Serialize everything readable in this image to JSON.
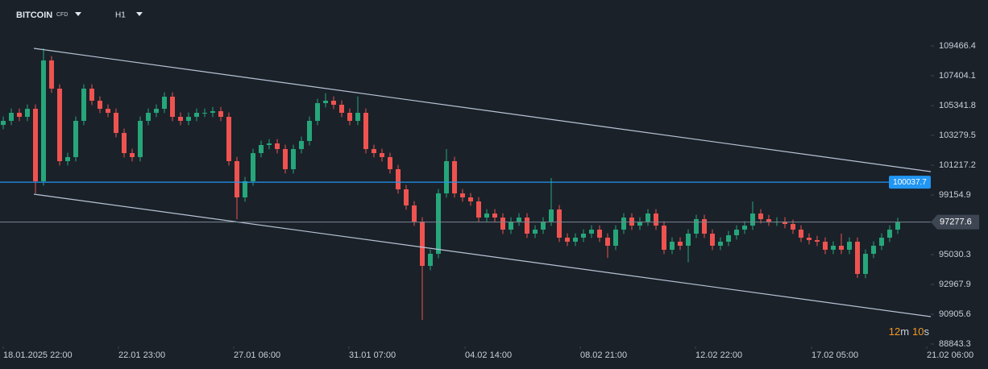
{
  "chart_data": {
    "type": "candlestick",
    "symbol": "BITCOIN",
    "instrument_type": "CFD",
    "timeframe": "H1",
    "up_color": "#26a67a",
    "down_color": "#ef5350",
    "open": [
      104000,
      104282,
      104839,
      104561,
      105118,
      100102,
      108463,
      106512,
      101495,
      101774,
      104282,
      106512,
      105676,
      105118,
      104839,
      103446,
      102052,
      101774,
      104282,
      104839,
      105118,
      105954,
      104561,
      104282,
      104561,
      104839,
      104839,
      104951,
      104561,
      101495,
      98987,
      100102,
      102052,
      102610,
      102721,
      102331,
      100938,
      102331,
      102889,
      104282,
      105508,
      105676,
      105397,
      104839,
      104282,
      104839,
      102331,
      102052,
      101774,
      100938,
      99544,
      98429,
      97314,
      94249,
      95085,
      99265,
      101495,
      99265,
      98987,
      98708,
      97593,
      97872,
      97593,
      96757,
      97314,
      97593,
      96479,
      96757,
      97314,
      98151,
      96200,
      95921,
      96200,
      96479,
      96757,
      96200,
      95643,
      96757,
      97593,
      97036,
      97314,
      97872,
      97036,
      95364,
      95921,
      95643,
      96479,
      97482,
      96479,
      95643,
      95921,
      96367,
      96757,
      97036,
      97872,
      97482,
      97314,
      97314,
      97147,
      96757,
      96200,
      96033,
      95921,
      95364,
      95643,
      95364,
      95921,
      93692,
      95085,
      95643,
      96200,
      96757
    ],
    "high": [
      104582,
      105139,
      105139,
      105418,
      105418,
      109299,
      108763,
      106812,
      102074,
      104582,
      106812,
      106812,
      105976,
      105418,
      105139,
      103746,
      102352,
      104582,
      105139,
      105418,
      106254,
      106254,
      104861,
      104861,
      105139,
      105139,
      105251,
      105251,
      104861,
      101795,
      100402,
      102352,
      102910,
      103021,
      103021,
      102631,
      102631,
      103189,
      104582,
      105808,
      106200,
      105976,
      105697,
      105139,
      105976,
      105139,
      102631,
      102352,
      102074,
      101238,
      99844,
      98729,
      97614,
      95385,
      99565,
      102331,
      101795,
      99565,
      99287,
      99008,
      98172,
      98172,
      97893,
      97614,
      97893,
      97893,
      97057,
      97614,
      100325,
      98451,
      96500,
      96500,
      96779,
      97057,
      97057,
      96500,
      97057,
      97893,
      97893,
      97614,
      98172,
      98172,
      97336,
      96221,
      96221,
      96779,
      97782,
      97782,
      96779,
      96221,
      96667,
      97057,
      97336,
      98700,
      98172,
      97782,
      97614,
      97614,
      97447,
      97057,
      96500,
      96333,
      96221,
      95943,
      96479,
      96221,
      96221,
      95385,
      95943,
      96500,
      97057,
      97577.6
    ],
    "low": [
      103700,
      103982,
      104261,
      104261,
      99265,
      99802,
      106212,
      101195,
      101195,
      101474,
      103982,
      105376,
      104818,
      104539,
      103146,
      101752,
      101474,
      101474,
      103982,
      104539,
      104818,
      104261,
      103982,
      103982,
      104261,
      104539,
      104539,
      104261,
      101195,
      97482,
      98687,
      99802,
      101752,
      102310,
      102031,
      100638,
      100638,
      102031,
      102589,
      103982,
      105208,
      105097,
      104539,
      103982,
      103982,
      102031,
      101752,
      101474,
      100638,
      99244,
      98129,
      97014,
      90514,
      93949,
      94785,
      98965,
      98965,
      98687,
      98408,
      97293,
      97293,
      97293,
      96457,
      96457,
      97014,
      96179,
      96179,
      96457,
      97014,
      95900,
      95621,
      95621,
      95900,
      96179,
      95900,
      94800,
      95343,
      96457,
      96736,
      96736,
      97014,
      96736,
      95064,
      95064,
      95343,
      94500,
      96179,
      96179,
      95343,
      95343,
      95621,
      96067,
      96457,
      96736,
      97182,
      97014,
      97014,
      96847,
      96457,
      95900,
      95733,
      95621,
      95064,
      95064,
      95064,
      95064,
      93413,
      93392,
      94785,
      95343,
      95900,
      96457
    ],
    "close": [
      104282,
      104839,
      104561,
      105118,
      100102,
      108463,
      106512,
      101495,
      101774,
      104282,
      106512,
      105676,
      105118,
      104839,
      103446,
      102052,
      101774,
      104282,
      104839,
      105118,
      105954,
      104561,
      104282,
      104561,
      104839,
      104839,
      104951,
      104561,
      101495,
      98987,
      100102,
      102052,
      102610,
      102721,
      102331,
      100938,
      102331,
      102889,
      104282,
      105508,
      105676,
      105397,
      104839,
      104282,
      104839,
      102331,
      102052,
      101774,
      100938,
      99544,
      98429,
      97314,
      94249,
      95085,
      99265,
      101495,
      99265,
      98987,
      98708,
      97593,
      97872,
      97593,
      96757,
      97314,
      97593,
      96479,
      96757,
      97314,
      98151,
      96200,
      95921,
      96200,
      96479,
      96757,
      96200,
      95643,
      96757,
      97593,
      97036,
      97314,
      97872,
      97036,
      95364,
      95921,
      95643,
      96479,
      97482,
      96479,
      95643,
      95921,
      96367,
      96757,
      97036,
      97872,
      97482,
      97314,
      97314,
      97147,
      96757,
      96200,
      96033,
      95921,
      95364,
      95643,
      95364,
      95921,
      93692,
      95085,
      95643,
      96200,
      96757,
      97277.6
    ],
    "xlim": [
      -0.4,
      115.1
    ],
    "xticks": [
      {
        "value": 0,
        "label": "18.01.2025 22:00"
      },
      {
        "value": 14.3,
        "label": "22.01 23:00"
      },
      {
        "value": 28.6,
        "label": "27.01 06:00"
      },
      {
        "value": 42.9,
        "label": "31.01 07:00"
      },
      {
        "value": 57.3,
        "label": "04.02 14:00"
      },
      {
        "value": 71.6,
        "label": "08.02 21:00"
      },
      {
        "value": 85.9,
        "label": "12.02 22:00"
      },
      {
        "value": 100.3,
        "label": "17.02 05:00"
      },
      {
        "value": 114.6,
        "label": "21.02 06:00"
      }
    ],
    "ylim": [
      88676,
      112643
    ],
    "yticks": [
      109466.4,
      107404.1,
      105341.8,
      103279.5,
      101217.2,
      99154.9,
      95030.3,
      92967.9,
      90905.6,
      88843.3
    ],
    "channel": [
      {
        "x": [
          3.8,
          115.1
        ],
        "y": [
          109299,
          100771
        ]
      },
      {
        "x": [
          3.8,
          115.1
        ],
        "y": [
          99210,
          90738
        ]
      }
    ],
    "channel_color": "#b8c4d6",
    "horizontal_line": {
      "value": 100037.7,
      "color": "#2196f3"
    },
    "last_price": 97277.6,
    "countdown": [
      "12",
      "m",
      "10",
      "s"
    ]
  }
}
